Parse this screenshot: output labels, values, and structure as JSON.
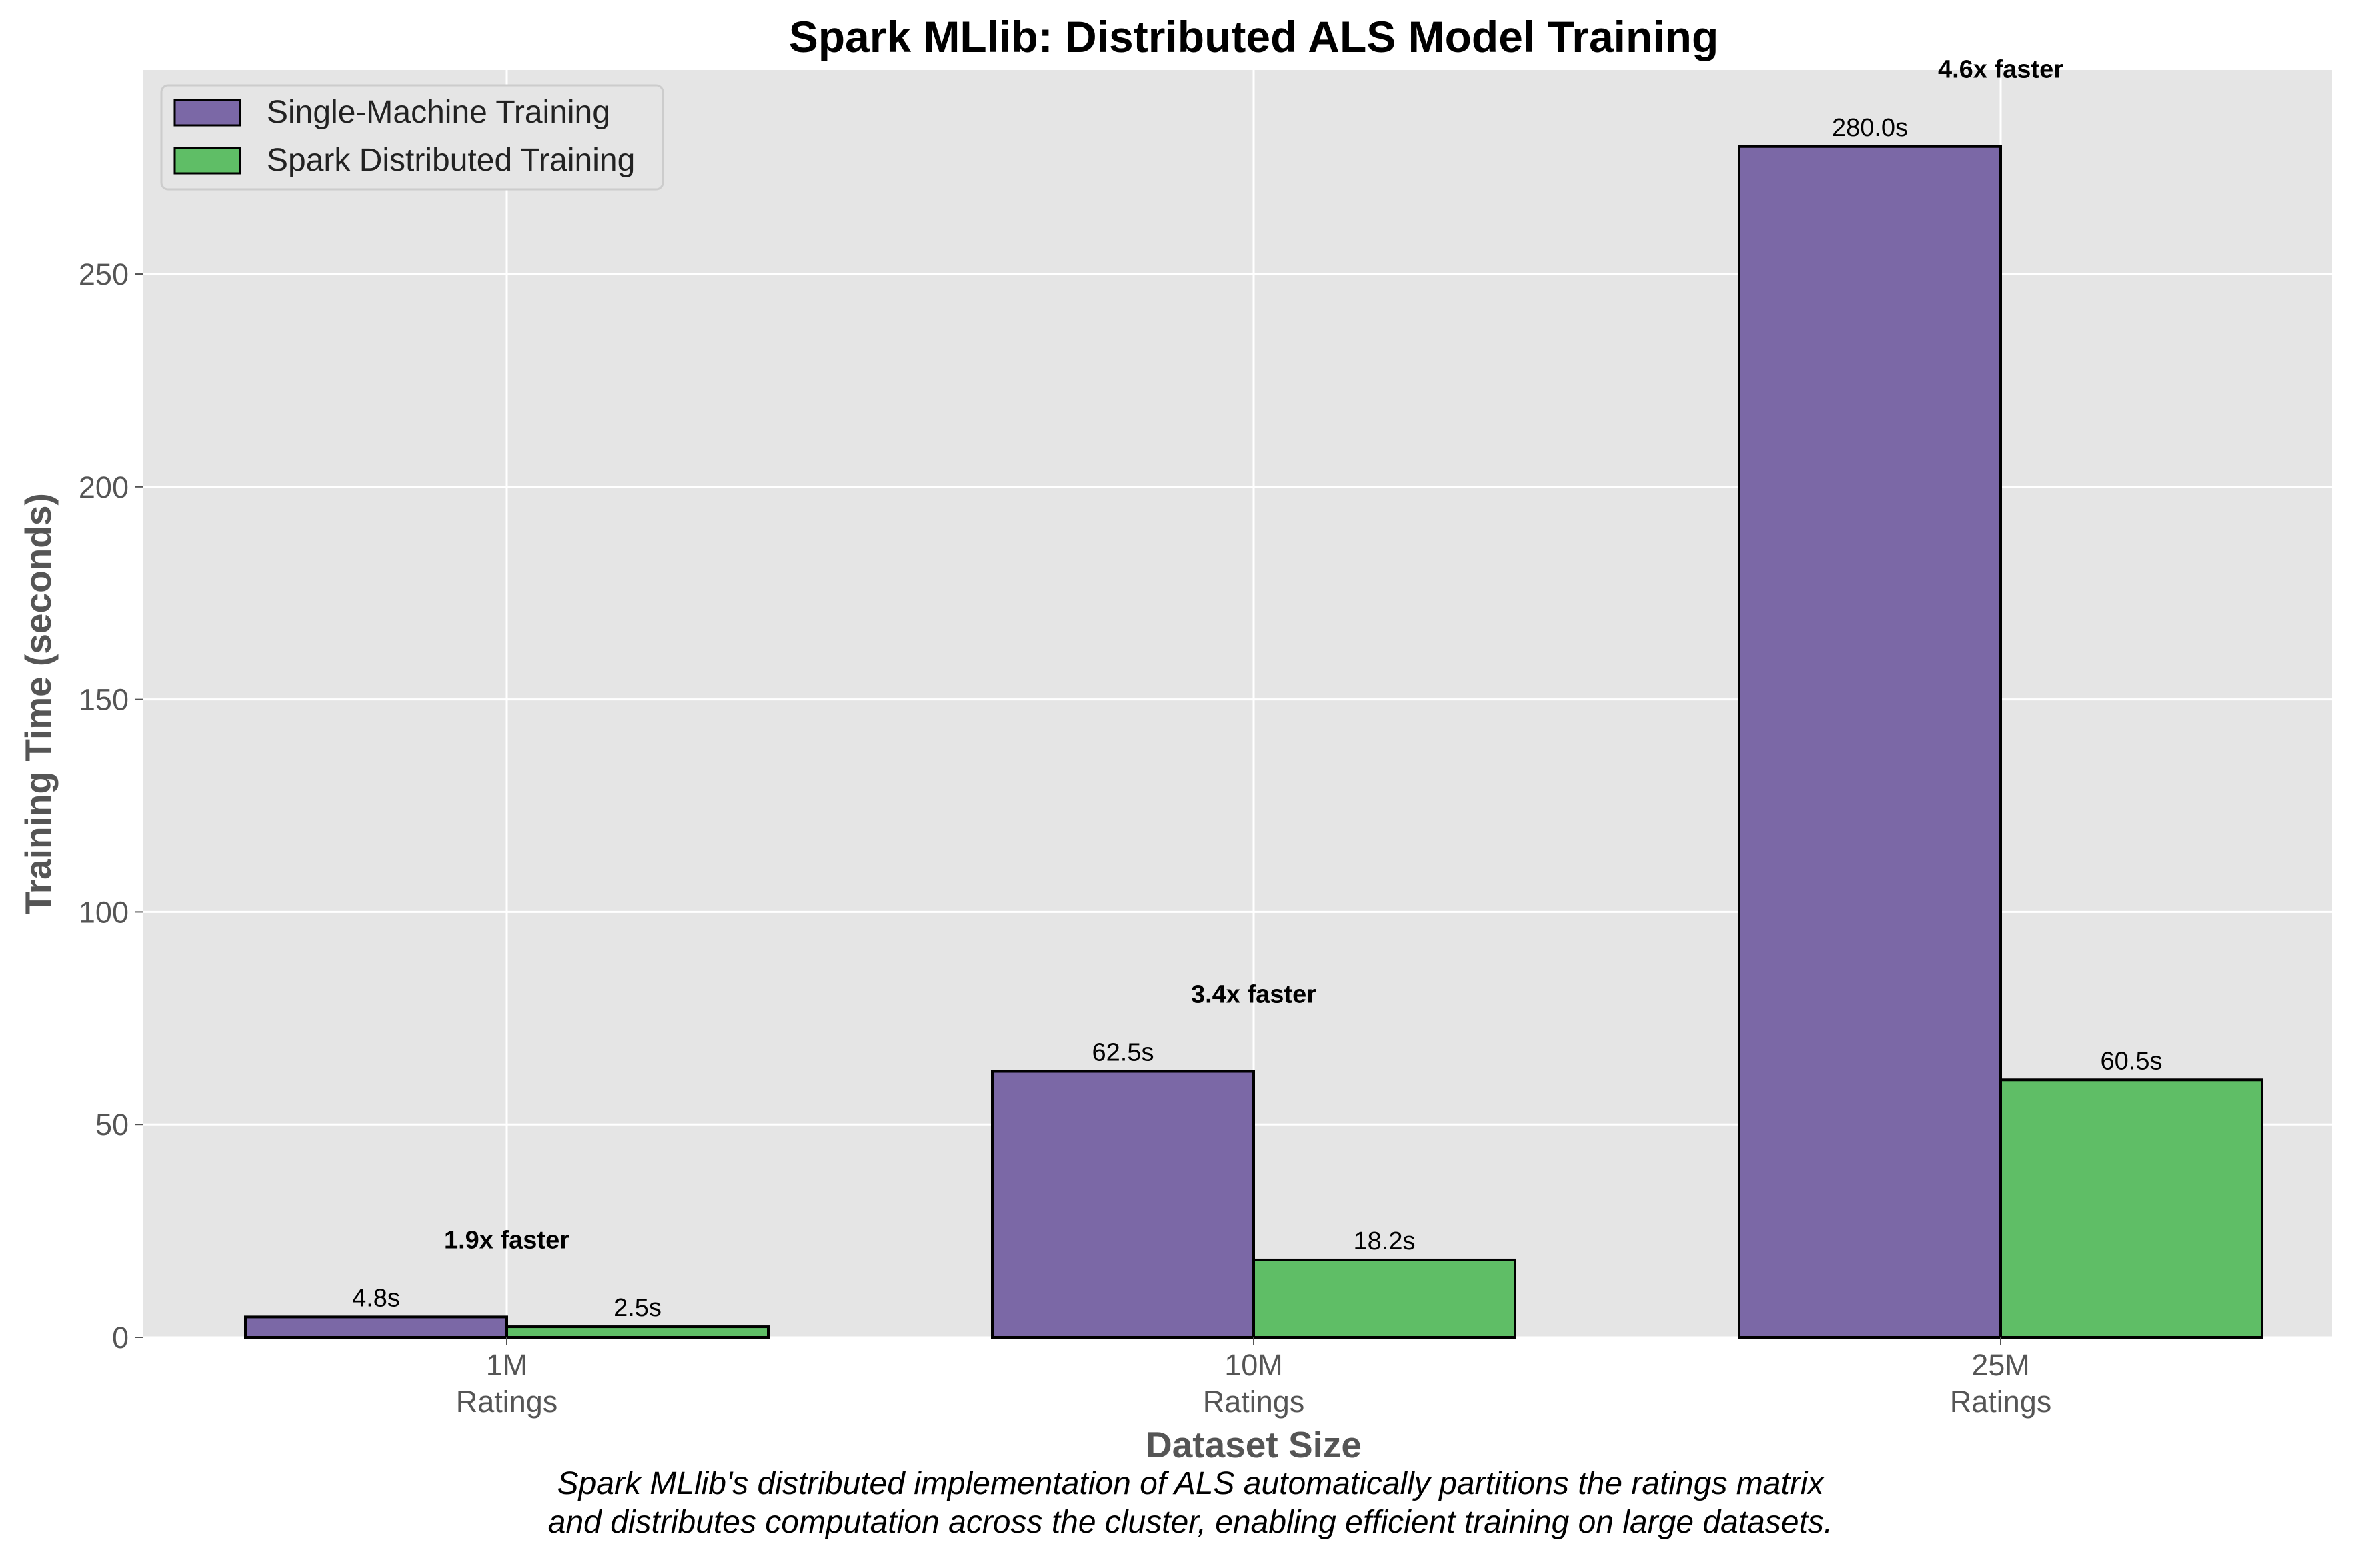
{
  "chart_data": {
    "type": "bar",
    "title": "Spark MLlib: Distributed ALS Model Training",
    "xlabel": "Dataset Size",
    "ylabel": "Training Time (seconds)",
    "categories": [
      {
        "line1": "1M",
        "line2": "Ratings"
      },
      {
        "line1": "10M",
        "line2": "Ratings"
      },
      {
        "line1": "25M",
        "line2": "Ratings"
      }
    ],
    "series": [
      {
        "name": "Single-Machine Training",
        "color": "#7b68a6",
        "values": [
          4.8,
          62.5,
          280.0
        ],
        "labels": [
          "4.8s",
          "62.5s",
          "280.0s"
        ]
      },
      {
        "name": "Spark Distributed Training",
        "color": "#5fbe66",
        "values": [
          2.5,
          18.2,
          60.5
        ],
        "labels": [
          "2.5s",
          "18.2s",
          "60.5s"
        ]
      }
    ],
    "speedup_annotations": [
      {
        "text": "1.9x faster",
        "y": 23.0
      },
      {
        "text": "3.4x faster",
        "y": 80.7
      },
      {
        "text": "4.6x faster",
        "y": 298.2
      }
    ],
    "ylim": [
      0,
      298
    ],
    "yticks": [
      0,
      50,
      100,
      150,
      200,
      250
    ],
    "grid": true,
    "legend_position": "upper-left",
    "caption_lines": [
      "Spark MLlib's distributed implementation of ALS automatically partitions the ratings matrix",
      "and distributes computation across the cluster, enabling efficient training on large datasets."
    ]
  }
}
